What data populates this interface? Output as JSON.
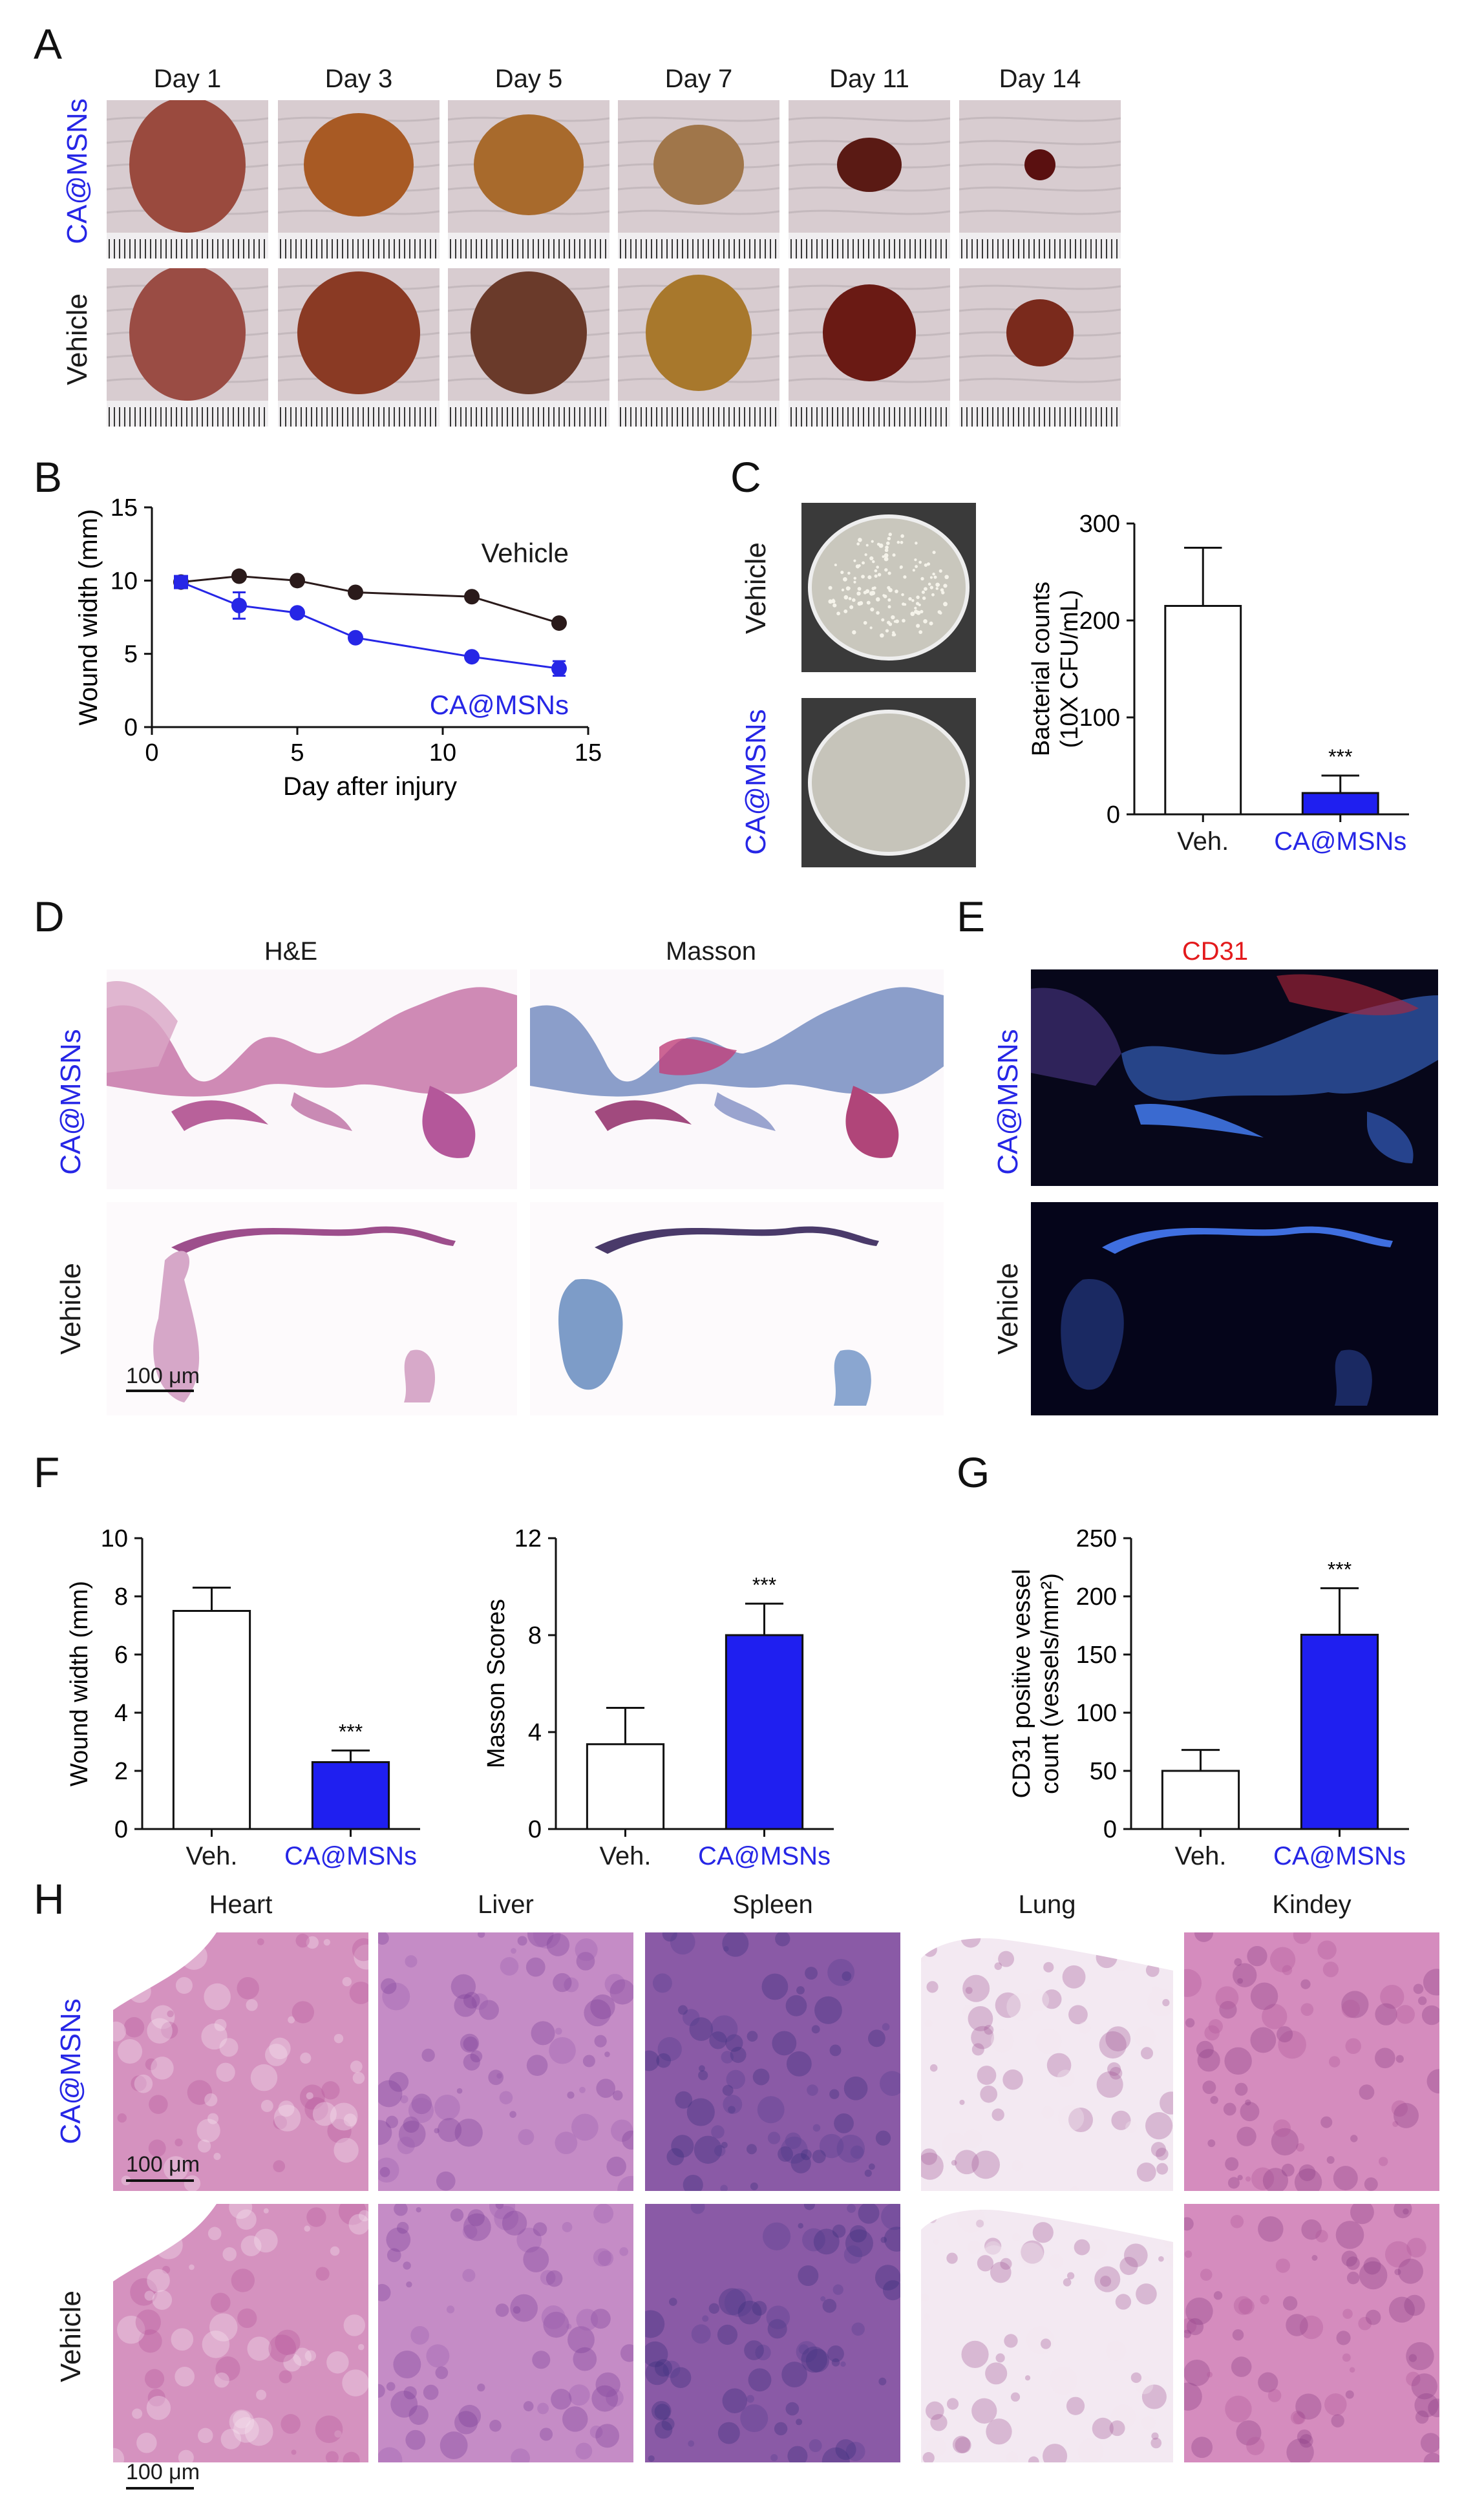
{
  "panel_letters": [
    "A",
    "B",
    "C",
    "D",
    "E",
    "F",
    "G",
    "H"
  ],
  "panelA": {
    "days": [
      "Day 1",
      "Day 3",
      "Day 5",
      "Day 7",
      "Day 11",
      "Day 14"
    ],
    "rows": [
      "CA@MSNs",
      "Vehicle"
    ]
  },
  "panelC_rows": [
    "Vehicle",
    "CA@MSNs"
  ],
  "panelD": {
    "cols": [
      "H&E",
      "Masson"
    ],
    "rows": [
      "CA@MSNs",
      "Vehicle"
    ],
    "scale": "100 μm"
  },
  "panelE": {
    "title": "CD31",
    "rows": [
      "CA@MSNs",
      "Vehicle"
    ]
  },
  "panelH": {
    "cols": [
      "Heart",
      "Liver",
      "Spleen",
      "Lung",
      "Kindey"
    ],
    "rows": [
      "CA@MSNs",
      "Vehicle"
    ],
    "scale": "100 μm"
  },
  "colors": {
    "blue": "#2626e6",
    "dark": "#2a1a1a",
    "red": "#e31a1c"
  },
  "chart_data": [
    {
      "id": "B",
      "type": "line",
      "xlabel": "Day after injury",
      "ylabel": "Wound width (mm)",
      "xlim": [
        0,
        15
      ],
      "ylim": [
        0,
        15
      ],
      "xticks": [
        0,
        5,
        10,
        15
      ],
      "yticks": [
        0,
        5,
        10,
        15
      ],
      "series": [
        {
          "name": "Vehicle",
          "color": "#2a1a1a",
          "x": [
            1,
            3,
            5,
            7,
            11,
            14
          ],
          "y": [
            9.9,
            10.3,
            10.0,
            9.2,
            8.9,
            7.1
          ],
          "err": [
            0,
            0,
            0,
            0,
            0,
            0
          ]
        },
        {
          "name": "CA@MSNs",
          "color": "#2626e6",
          "x": [
            1,
            3,
            5,
            7,
            11,
            14
          ],
          "y": [
            9.9,
            8.3,
            7.8,
            6.1,
            4.8,
            4.0
          ],
          "err": [
            0.2,
            0.9,
            0,
            0,
            0,
            0.5
          ]
        }
      ]
    },
    {
      "id": "C",
      "type": "bar",
      "ylabel_lines": [
        "Bacterial counts",
        "(10X CFU/mL)"
      ],
      "categories": [
        "Veh.",
        "CA@MSNs"
      ],
      "values": [
        215,
        22
      ],
      "err": [
        60,
        18
      ],
      "ylim": [
        0,
        300
      ],
      "yticks": [
        0,
        100,
        200,
        300
      ],
      "sig": "***"
    },
    {
      "id": "F1",
      "type": "bar",
      "ylabel_lines": [
        "Wound width (mm)"
      ],
      "categories": [
        "Veh.",
        "CA@MSNs"
      ],
      "values": [
        7.5,
        2.3
      ],
      "err": [
        0.8,
        0.4
      ],
      "ylim": [
        0,
        10
      ],
      "yticks": [
        0,
        2,
        4,
        6,
        8,
        10
      ],
      "sig": "***"
    },
    {
      "id": "F2",
      "type": "bar",
      "ylabel_lines": [
        "Masson Scores"
      ],
      "categories": [
        "Veh.",
        "CA@MSNs"
      ],
      "values": [
        3.5,
        8.0
      ],
      "err": [
        1.5,
        1.3
      ],
      "ylim": [
        0,
        12
      ],
      "yticks": [
        0,
        4,
        8,
        12
      ],
      "sig": "***"
    },
    {
      "id": "G",
      "type": "bar",
      "ylabel_lines": [
        "CD31 positive vessel",
        "count  (vessels/mm²)"
      ],
      "categories": [
        "Veh.",
        "CA@MSNs"
      ],
      "values": [
        50,
        167
      ],
      "err": [
        18,
        40
      ],
      "ylim": [
        0,
        250
      ],
      "yticks": [
        0,
        50,
        100,
        150,
        200,
        250
      ],
      "sig": "***"
    }
  ]
}
